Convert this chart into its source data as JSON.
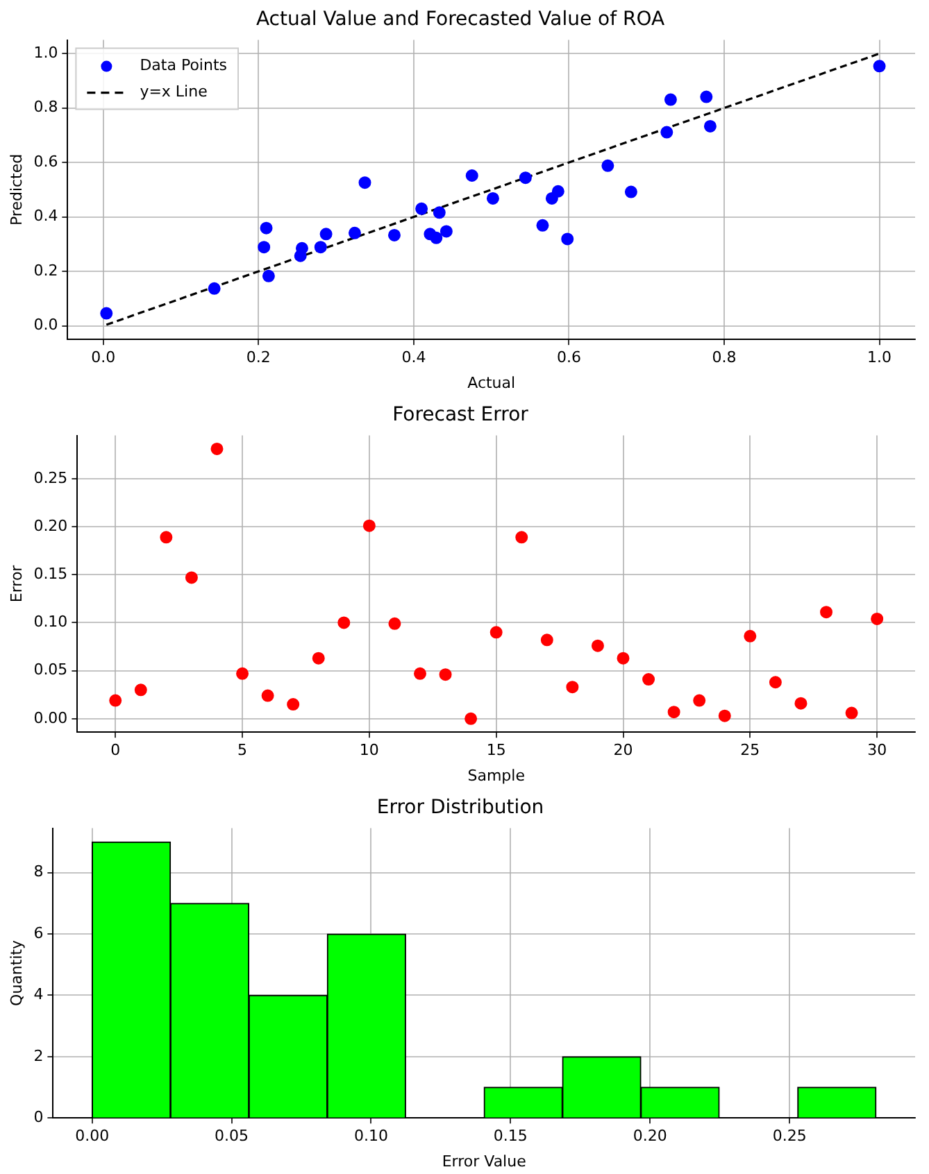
{
  "chart_data": [
    {
      "type": "scatter",
      "title": "Actual Value and Forecasted Value of ROA",
      "xlabel": "Actual",
      "ylabel": "Predicted",
      "xlim": [
        -0.046,
        1.046
      ],
      "ylim": [
        -0.05,
        1.05
      ],
      "xticks": [
        {
          "value": 0,
          "label": "0.0"
        },
        {
          "value": 0.2,
          "label": "0.2"
        },
        {
          "value": 0.4,
          "label": "0.4"
        },
        {
          "value": 0.6,
          "label": "0.6"
        },
        {
          "value": 0.8,
          "label": "0.8"
        },
        {
          "value": 1,
          "label": "1.0"
        }
      ],
      "yticks": [
        {
          "value": 0,
          "label": "0.0"
        },
        {
          "value": 0.2,
          "label": "0.2"
        },
        {
          "value": 0.4,
          "label": "0.4"
        },
        {
          "value": 0.6,
          "label": "0.6"
        },
        {
          "value": 0.8,
          "label": "0.8"
        },
        {
          "value": 1,
          "label": "1.0"
        }
      ],
      "grid": true,
      "legend": "top left",
      "series": [
        {
          "name": "Data Points",
          "type": "scatter",
          "color": "#0000ff",
          "marker": "circle",
          "x": [
            0.004,
            0.143,
            0.207,
            0.21,
            0.213,
            0.254,
            0.256,
            0.28,
            0.287,
            0.324,
            0.337,
            0.375,
            0.41,
            0.421,
            0.429,
            0.433,
            0.442,
            0.475,
            0.502,
            0.544,
            0.566,
            0.578,
            0.586,
            0.598,
            0.65,
            0.68,
            0.726,
            0.731,
            0.777,
            0.782,
            1.0
          ],
          "values": [
            0.046,
            0.137,
            0.289,
            0.359,
            0.183,
            0.257,
            0.285,
            0.289,
            0.337,
            0.341,
            0.526,
            0.333,
            0.43,
            0.337,
            0.323,
            0.416,
            0.347,
            0.552,
            0.468,
            0.544,
            0.369,
            0.468,
            0.494,
            0.319,
            0.588,
            0.492,
            0.711,
            0.831,
            0.841,
            0.733,
            0.954
          ]
        },
        {
          "name": "y=x Line",
          "type": "line",
          "color": "#000000",
          "line_style": "dashed",
          "marker": "none",
          "x": [
            0.004,
            1.0
          ],
          "values": [
            0.004,
            1.0
          ]
        }
      ]
    },
    {
      "type": "scatter",
      "title": "Forecast Error",
      "xlabel": "Sample",
      "ylabel": "Error",
      "xlim": [
        -1.5,
        31.5
      ],
      "ylim": [
        -0.014,
        0.295
      ],
      "xticks": [
        0,
        5,
        10,
        15,
        20,
        25,
        30
      ],
      "yticks": [
        {
          "value": 0,
          "label": "0.00"
        },
        {
          "value": 0.05,
          "label": "0.05"
        },
        {
          "value": 0.1,
          "label": "0.10"
        },
        {
          "value": 0.15,
          "label": "0.15"
        },
        {
          "value": 0.2,
          "label": "0.20"
        },
        {
          "value": 0.25,
          "label": "0.25"
        }
      ],
      "grid": true,
      "marker": "circle",
      "series": [
        {
          "type": "scatter",
          "color": "#ff0000",
          "x": [
            0,
            1,
            2,
            3,
            4,
            5,
            6,
            7,
            8,
            9,
            10,
            11,
            12,
            13,
            14,
            15,
            16,
            17,
            18,
            19,
            20,
            21,
            22,
            23,
            24,
            25,
            26,
            27,
            28,
            29,
            30
          ],
          "values": [
            0.019,
            0.03,
            0.189,
            0.147,
            0.281,
            0.047,
            0.024,
            0.015,
            0.063,
            0.1,
            0.201,
            0.099,
            0.047,
            0.046,
            0.0,
            0.09,
            0.189,
            0.082,
            0.033,
            0.076,
            0.063,
            0.041,
            0.007,
            0.019,
            0.003,
            0.086,
            0.038,
            0.016,
            0.111,
            0.006,
            0.104
          ]
        }
      ]
    },
    {
      "type": "histogram",
      "title": "Error Distribution",
      "xlabel": "Error Value",
      "ylabel": "Quantity",
      "xlim": [
        -0.014,
        0.295
      ],
      "ylim": [
        0,
        9.45
      ],
      "xticks": [
        {
          "value": 0,
          "label": "0.00"
        },
        {
          "value": 0.05,
          "label": "0.05"
        },
        {
          "value": 0.1,
          "label": "0.10"
        },
        {
          "value": 0.15,
          "label": "0.15"
        },
        {
          "value": 0.2,
          "label": "0.20"
        },
        {
          "value": 0.25,
          "label": "0.25"
        }
      ],
      "yticks": [
        0,
        2,
        4,
        6,
        8
      ],
      "grid": true,
      "color": "#00ff00",
      "bins": [
        0,
        0.0281,
        0.0562,
        0.0843,
        0.1124,
        0.1405,
        0.1686,
        0.1967,
        0.2248,
        0.2529,
        0.281
      ],
      "values": [
        9,
        7,
        4,
        6,
        0,
        1,
        2,
        1,
        0,
        1
      ]
    }
  ]
}
